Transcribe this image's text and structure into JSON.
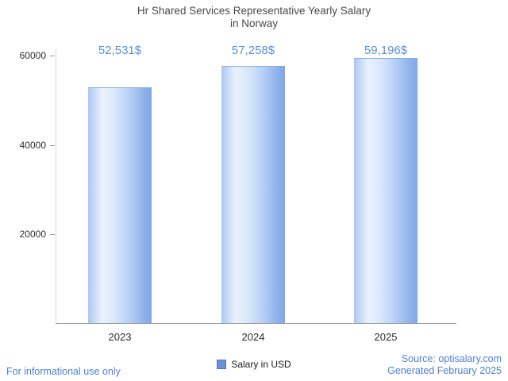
{
  "title": {
    "line1": "Hr Shared Services Representative Yearly Salary",
    "line2": "in Norway"
  },
  "chart_data": {
    "type": "bar",
    "title": "Hr Shared Services Representative Yearly Salary in Norway",
    "categories": [
      "2023",
      "2024",
      "2025"
    ],
    "values": [
      52531,
      57258,
      59196
    ],
    "value_labels": [
      "52,531$",
      "57,258$",
      "59,196$"
    ],
    "series_name": "Salary in USD",
    "xlabel": "",
    "ylabel": "",
    "ylim": [
      0,
      60000
    ],
    "yticks": [
      20000,
      40000,
      60000
    ],
    "ytick_labels": [
      "20000",
      "40000",
      "60000"
    ],
    "grid": false,
    "legend_position": "bottom"
  },
  "legend": {
    "label": "Salary in USD"
  },
  "footer": {
    "disclaimer": "For informational use only",
    "source": "Source: optisalary.com",
    "generated": "Generated February 2025"
  },
  "colors": {
    "bar_gradient_left": "#aac8f3",
    "bar_gradient_mid": "#e9f1fd",
    "bar_gradient_right": "#7fa6e8",
    "value_label": "#5b8fd9",
    "footer_link": "#4f7fd9",
    "title_text": "#4a4a4a",
    "axis": "#9a9a9a",
    "legend_swatch": "#6b90d6"
  }
}
